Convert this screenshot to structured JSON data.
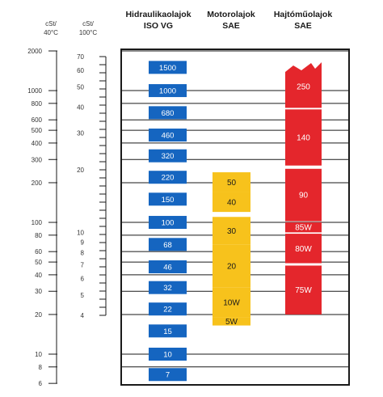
{
  "headers": {
    "iso_title_1": "Hidraulikaolajok",
    "iso_title_2": "ISO VG",
    "motor_title_1": "Motorolajok",
    "motor_title_2": "SAE",
    "gear_title_1": "Hajtóműolajok",
    "gear_title_2": "SAE",
    "unit40_1": "cSt/",
    "unit40_2": "40°C",
    "unit100_1": "cSt/",
    "unit100_2": "100°C"
  },
  "colors": {
    "iso_blue": "#1565c0",
    "motor_yellow": "#f7c21c",
    "gear_red": "#e4262c",
    "grid": "#1a1a1a"
  },
  "chart_data": {
    "type": "table",
    "axes": {
      "cst_40C": {
        "label": "cSt/ 40°C",
        "scale": "log",
        "range": [
          6,
          2000
        ],
        "ticks": [
          2000,
          1000,
          800,
          600,
          500,
          400,
          300,
          200,
          100,
          80,
          60,
          50,
          40,
          30,
          20,
          10,
          8,
          6
        ]
      },
      "cst_100C": {
        "label": "cSt/ 100°C",
        "scale": "log",
        "range": [
          4,
          70
        ],
        "ticks": [
          70,
          60,
          50,
          40,
          30,
          20,
          10,
          9,
          8,
          7,
          6,
          5,
          4
        ]
      }
    },
    "grid_lines_cst40": [
      2000,
      1000,
      800,
      600,
      500,
      400,
      300,
      200,
      100,
      80,
      60,
      50,
      40,
      30,
      20,
      10,
      8
    ],
    "iso_vg": {
      "title": "Hidraulikaolajok ISO VG",
      "grades": [
        {
          "label": "1500",
          "cst40": 1500
        },
        {
          "label": "1000",
          "cst40": 1000
        },
        {
          "label": "680",
          "cst40": 680
        },
        {
          "label": "460",
          "cst40": 460
        },
        {
          "label": "320",
          "cst40": 320
        },
        {
          "label": "220",
          "cst40": 220
        },
        {
          "label": "150",
          "cst40": 150
        },
        {
          "label": "100",
          "cst40": 100
        },
        {
          "label": "68",
          "cst40": 68
        },
        {
          "label": "46",
          "cst40": 46
        },
        {
          "label": "32",
          "cst40": 32
        },
        {
          "label": "22",
          "cst40": 22
        },
        {
          "label": "15",
          "cst40": 15
        },
        {
          "label": "10",
          "cst40": 10
        },
        {
          "label": "7",
          "cst40": 7
        }
      ]
    },
    "motor_sae": {
      "title": "Motorolajok SAE",
      "grades": [
        {
          "label": "50",
          "from": 170,
          "to": 240
        },
        {
          "label": "40",
          "from": 120,
          "to": 170
        },
        {
          "label": "30",
          "from": 68,
          "to": 110
        },
        {
          "label": "20",
          "from": 32,
          "to": 68
        },
        {
          "label": "10W",
          "from": 19,
          "to": 32
        },
        {
          "label": "5W",
          "from": 16.5,
          "to": 19
        }
      ]
    },
    "gear_sae": {
      "title": "Hajtóműolajok SAE",
      "grades": [
        {
          "label": "250",
          "from": 740,
          "to": 1550
        },
        {
          "label": "140",
          "from": 270,
          "to": 720
        },
        {
          "label": "90",
          "from": 102,
          "to": 255
        },
        {
          "label": "85W",
          "from": 84,
          "to": 100
        },
        {
          "label": "80W",
          "from": 49,
          "to": 82
        },
        {
          "label": "75W",
          "from": 20,
          "to": 47
        }
      ]
    }
  }
}
